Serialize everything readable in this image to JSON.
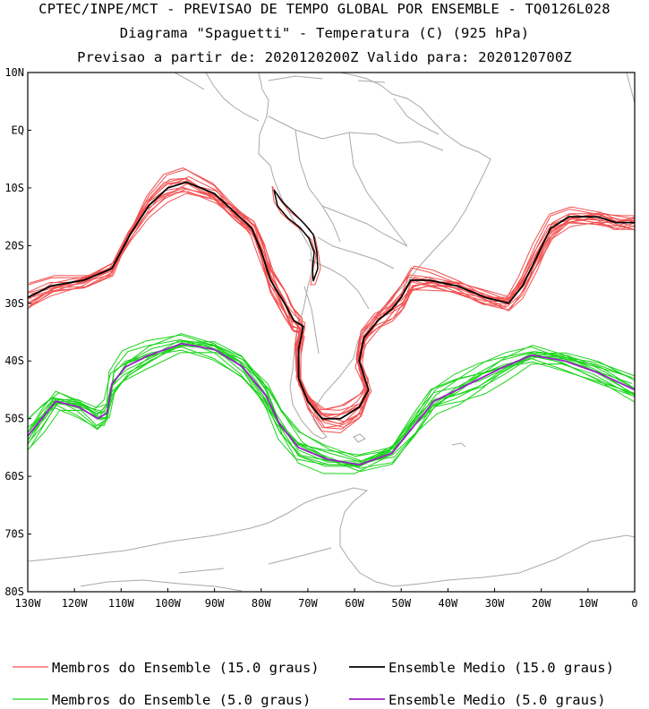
{
  "header": {
    "title_line1": "CPTEC/INPE/MCT - PREVISAO DE TEMPO GLOBAL POR ENSEMBLE - TQ0126L028",
    "title_line2": "Diagrama \"Spaguetti\" - Temperatura (C) (925 hPa)",
    "title_line3": "Previsao a partir de: 2020120200Z  Valido para: 2020120700Z"
  },
  "map": {
    "lat_labels": [
      "10N",
      "EQ",
      "10S",
      "20S",
      "30S",
      "40S",
      "50S",
      "60S",
      "70S",
      "80S"
    ],
    "lon_labels": [
      "130W",
      "120W",
      "110W",
      "100W",
      "90W",
      "80W",
      "70W",
      "60W",
      "50W",
      "40W",
      "30W",
      "20W",
      "10W",
      "0"
    ],
    "lon_range": [
      -130,
      0
    ],
    "lat_range": [
      -80,
      10
    ]
  },
  "colors": {
    "members_15": "#f25050",
    "mean_15": "#000000",
    "members_5": "#1ad31a",
    "mean_5": "#9a1fc8",
    "coast": "#a8a8a8"
  },
  "legend": {
    "members_15_label": "Membros do Ensemble (15.0 graus)",
    "mean_15_label": "Ensemble Medio (15.0 graus)",
    "members_5_label": "Membros do Ensemble (5.0 graus)",
    "mean_5_label": "Ensemble Medio (5.0 graus)"
  },
  "chart_data": {
    "type": "line",
    "series": [
      {
        "name": "Ensemble Medio (15.0 graus)",
        "isotherm_c": 15.0,
        "points_lon_lat": [
          [
            -130,
            -29
          ],
          [
            -125,
            -27
          ],
          [
            -118,
            -26
          ],
          [
            -112,
            -24
          ],
          [
            -108,
            -18
          ],
          [
            -104,
            -13
          ],
          [
            -100,
            -10
          ],
          [
            -96,
            -9
          ],
          [
            -90,
            -11
          ],
          [
            -86,
            -14
          ],
          [
            -82,
            -17
          ],
          [
            -80,
            -21
          ],
          [
            -78,
            -26
          ],
          [
            -75,
            -30
          ],
          [
            -73,
            -33
          ],
          [
            -71,
            -34
          ],
          [
            -72,
            -38
          ],
          [
            -72,
            -43
          ],
          [
            -70,
            -47
          ],
          [
            -67,
            -50
          ],
          [
            -63,
            -50
          ],
          [
            -59,
            -48
          ],
          [
            -57,
            -45
          ],
          [
            -59,
            -40
          ],
          [
            -58,
            -36
          ],
          [
            -55,
            -33
          ],
          [
            -52,
            -31
          ],
          [
            -50,
            -29
          ],
          [
            -48,
            -26
          ],
          [
            -44,
            -26
          ],
          [
            -38,
            -27
          ],
          [
            -32,
            -29
          ],
          [
            -27,
            -30
          ],
          [
            -24,
            -27
          ],
          [
            -21,
            -22
          ],
          [
            -18,
            -17
          ],
          [
            -14,
            -15
          ],
          [
            -8,
            -15
          ],
          [
            -4,
            -16
          ],
          [
            0,
            -16
          ]
        ]
      },
      {
        "name": "Ensemble Medio (5.0 graus)",
        "isotherm_c": 5.0,
        "points_lon_lat": [
          [
            -130,
            -53
          ],
          [
            -127,
            -50
          ],
          [
            -124,
            -47
          ],
          [
            -119,
            -48
          ],
          [
            -115,
            -50
          ],
          [
            -113,
            -49
          ],
          [
            -112,
            -44
          ],
          [
            -109,
            -41
          ],
          [
            -104,
            -39
          ],
          [
            -97,
            -37
          ],
          [
            -90,
            -38
          ],
          [
            -84,
            -41
          ],
          [
            -79,
            -46
          ],
          [
            -76,
            -51
          ],
          [
            -72,
            -55
          ],
          [
            -66,
            -57
          ],
          [
            -59,
            -58
          ],
          [
            -52,
            -56
          ],
          [
            -47,
            -51
          ],
          [
            -43,
            -47
          ],
          [
            -38,
            -45
          ],
          [
            -33,
            -43
          ],
          [
            -28,
            -41
          ],
          [
            -22,
            -39
          ],
          [
            -15,
            -40
          ],
          [
            -8,
            -42
          ],
          [
            0,
            -45
          ]
        ]
      }
    ]
  }
}
